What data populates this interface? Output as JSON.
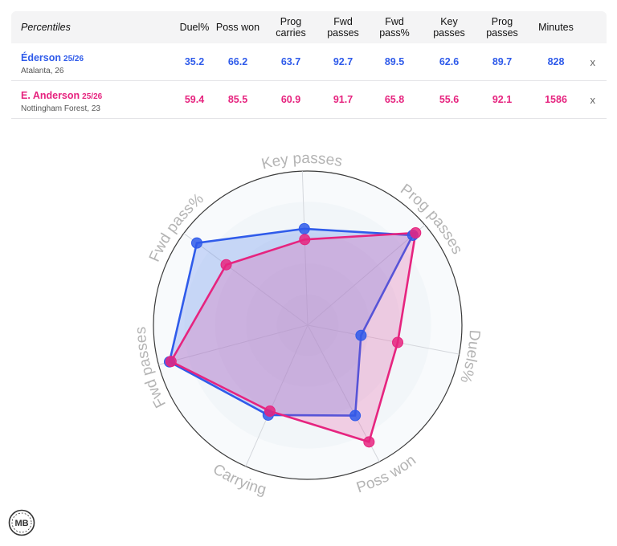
{
  "table": {
    "title": "Percentiles",
    "columns": [
      "Duel%",
      "Poss won",
      "Prog carries",
      "Fwd passes",
      "Fwd pass%",
      "Key passes",
      "Prog passes",
      "Minutes"
    ],
    "close_label": "x",
    "rows": [
      {
        "player": "Éderson",
        "season": "25/26",
        "team": "Atalanta, 26",
        "values": [
          "35.2",
          "66.2",
          "63.7",
          "92.7",
          "89.5",
          "62.6",
          "89.7",
          "828"
        ]
      },
      {
        "player": "E. Anderson",
        "season": "25/26",
        "team": "Nottingham Forest, 23",
        "values": [
          "59.4",
          "85.5",
          "60.9",
          "91.7",
          "65.8",
          "55.6",
          "92.1",
          "1586"
        ]
      }
    ]
  },
  "colors": {
    "player1": "#2f5bea",
    "player2": "#e6247f",
    "grid_label": "#b4b4b4"
  },
  "logo": {
    "text": "MB"
  },
  "chart_data": {
    "type": "radar",
    "axes": [
      "Key passes",
      "Prog passes",
      "Duels%",
      "Poss won",
      "Carrying",
      "Fwd passes",
      "Fwd pass%"
    ],
    "range": [
      0,
      100
    ],
    "series": [
      {
        "name": "Éderson",
        "values": [
          62.6,
          89.7,
          35.2,
          66.2,
          63.7,
          92.7,
          89.5
        ]
      },
      {
        "name": "E. Anderson",
        "values": [
          55.6,
          92.1,
          59.4,
          85.5,
          60.9,
          91.7,
          65.8
        ]
      }
    ]
  }
}
